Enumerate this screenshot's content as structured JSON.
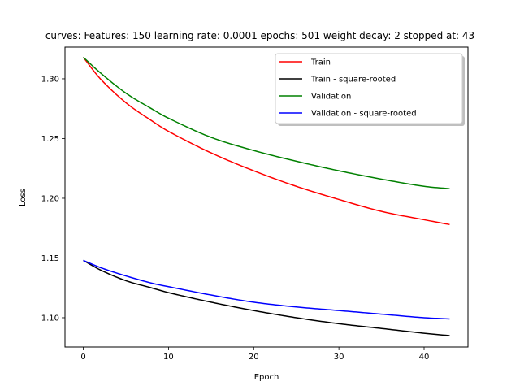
{
  "chart_data": {
    "type": "line",
    "title": "curves: Features: 150 learning rate: 0.0001 epochs: 501 weight decay: 2 stopped at: 43",
    "xlabel": "Epoch",
    "ylabel": "Loss",
    "xlim": [
      -2.15,
      45.15
    ],
    "ylim": [
      1.0755,
      1.3265
    ],
    "xticks": [
      0,
      10,
      20,
      30,
      40
    ],
    "yticks": [
      1.1,
      1.15,
      1.2,
      1.25,
      1.3
    ],
    "grid": false,
    "legend_position": "top-right",
    "x_start": 0,
    "x_end": 43,
    "series": [
      {
        "name": "Train",
        "color": "#ff0000",
        "x": [
          0,
          2,
          5,
          8,
          10,
          15,
          20,
          25,
          30,
          35,
          40,
          43
        ],
        "y": [
          1.318,
          1.3,
          1.28,
          1.265,
          1.256,
          1.238,
          1.223,
          1.21,
          1.199,
          1.189,
          1.182,
          1.178
        ]
      },
      {
        "name": "Train - square-rooted",
        "color": "#000000",
        "x": [
          0,
          2,
          5,
          8,
          10,
          15,
          20,
          25,
          30,
          35,
          40,
          43
        ],
        "y": [
          1.148,
          1.14,
          1.131,
          1.125,
          1.121,
          1.113,
          1.106,
          1.1,
          1.095,
          1.091,
          1.087,
          1.085
        ]
      },
      {
        "name": "Validation",
        "color": "#008000",
        "x": [
          0,
          2,
          5,
          8,
          10,
          15,
          20,
          25,
          30,
          35,
          40,
          43
        ],
        "y": [
          1.318,
          1.305,
          1.288,
          1.275,
          1.267,
          1.251,
          1.24,
          1.231,
          1.223,
          1.216,
          1.21,
          1.208
        ]
      },
      {
        "name": "Validation - square-rooted",
        "color": "#0000ff",
        "x": [
          0,
          2,
          5,
          8,
          10,
          15,
          20,
          25,
          30,
          35,
          40,
          43
        ],
        "y": [
          1.148,
          1.142,
          1.135,
          1.129,
          1.126,
          1.119,
          1.113,
          1.109,
          1.106,
          1.103,
          1.1,
          1.099
        ]
      }
    ]
  }
}
